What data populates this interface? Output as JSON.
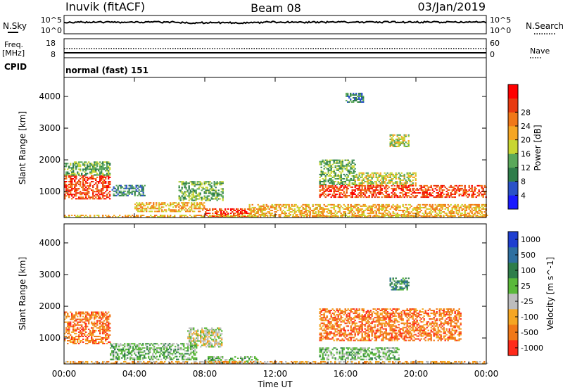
{
  "header": {
    "station": "Inuvik (fitACF)",
    "beam": "Beam 08",
    "date": "03/Jan/2019"
  },
  "top_panels": {
    "nsky_label": "N.Sky",
    "nsky_ticks": [
      "10^5",
      "10^0"
    ],
    "nsearch_label": "N.Search",
    "nsearch_ticks": [
      "10^5",
      "10^0"
    ],
    "freq_label": "Freq.",
    "freq_unit": "[MHz]",
    "freq_ticks": [
      "18",
      "8"
    ],
    "nave_label": "Nave",
    "nave_ticks": [
      "60",
      "0"
    ],
    "cpid_label": "CPID",
    "cpid_text": "normal (fast) 151"
  },
  "chart_data": [
    {
      "type": "heatmap",
      "name": "power-panel",
      "ylabel": "Slant Range [km]",
      "ylim": [
        180,
        4600
      ],
      "yticks": [
        1000,
        2000,
        3000,
        4000
      ],
      "xlim": [
        0,
        24
      ],
      "colorbar_label": "Power [dB]",
      "colorbar_ticks": [
        "4",
        "8",
        "12",
        "16",
        "20",
        "24",
        "28"
      ],
      "colorscale": [
        "#1a1aff",
        "#2a52c8",
        "#2e7d4a",
        "#5aa85a",
        "#c8d632",
        "#f5a623",
        "#f07818",
        "#e83a10",
        "#ff0000"
      ],
      "echo_regions": [
        {
          "t": [
            0.0,
            2.6
          ],
          "r": [
            750,
            1500
          ],
          "level": 28
        },
        {
          "t": [
            0.0,
            2.6
          ],
          "r": [
            1500,
            1950
          ],
          "level": 12
        },
        {
          "t": [
            2.7,
            4.6
          ],
          "r": [
            850,
            1200
          ],
          "level": 8
        },
        {
          "t": [
            4.0,
            8.0
          ],
          "r": [
            350,
            650
          ],
          "level": 20
        },
        {
          "t": [
            6.5,
            9.0
          ],
          "r": [
            700,
            1300
          ],
          "level": 12
        },
        {
          "t": [
            8.0,
            10.5
          ],
          "r": [
            200,
            450
          ],
          "level": 26
        },
        {
          "t": [
            14.5,
            16.5
          ],
          "r": [
            1200,
            2000
          ],
          "level": 12
        },
        {
          "t": [
            16.5,
            20.0
          ],
          "r": [
            1200,
            1600
          ],
          "level": 16
        },
        {
          "t": [
            14.5,
            24.0
          ],
          "r": [
            800,
            1200
          ],
          "level": 26
        },
        {
          "t": [
            10.5,
            24.0
          ],
          "r": [
            200,
            600
          ],
          "level": 20
        },
        {
          "t": [
            18.5,
            19.6
          ],
          "r": [
            2400,
            2800
          ],
          "level": 14
        },
        {
          "t": [
            16.0,
            17.0
          ],
          "r": [
            3800,
            4100
          ],
          "level": 8
        },
        {
          "t": [
            0.0,
            24.0
          ],
          "r": [
            180,
            260
          ],
          "level": 20
        }
      ]
    },
    {
      "type": "heatmap",
      "name": "velocity-panel",
      "ylabel": "Slant Range [km]",
      "xlabel": "Time UT",
      "ylim": [
        180,
        4600
      ],
      "yticks": [
        1000,
        2000,
        3000,
        4000
      ],
      "xlim": [
        0,
        24
      ],
      "xticks": [
        "00:00",
        "04:00",
        "08:00",
        "12:00",
        "16:00",
        "20:00",
        "00:00"
      ],
      "colorbar_label": "Velocity [m s^-1]",
      "colorbar_ticks": [
        "1000",
        "500",
        "100",
        "25",
        "-25",
        "-100",
        "-500",
        "-1000"
      ],
      "colorscale": [
        "#1f3fd0",
        "#2e6fa0",
        "#2e7d4a",
        "#5ab83a",
        "#bdbdbd",
        "#f5a623",
        "#f07818",
        "#ff2a1a"
      ],
      "echo_regions": [
        {
          "t": [
            0.0,
            2.6
          ],
          "r": [
            800,
            1800
          ],
          "level": -300
        },
        {
          "t": [
            2.6,
            7.5
          ],
          "r": [
            300,
            800
          ],
          "level": 60
        },
        {
          "t": [
            7.0,
            9.0
          ],
          "r": [
            700,
            1300
          ],
          "level": 0
        },
        {
          "t": [
            8.0,
            11.0
          ],
          "r": [
            200,
            400
          ],
          "level": 60
        },
        {
          "t": [
            14.5,
            22.5
          ],
          "r": [
            900,
            1900
          ],
          "level": -300
        },
        {
          "t": [
            14.5,
            19.0
          ],
          "r": [
            300,
            700
          ],
          "level": 60
        },
        {
          "t": [
            18.5,
            19.6
          ],
          "r": [
            2500,
            2900
          ],
          "level": 100
        },
        {
          "t": [
            0.0,
            24.0
          ],
          "r": [
            180,
            260
          ],
          "level": -60
        }
      ]
    }
  ]
}
